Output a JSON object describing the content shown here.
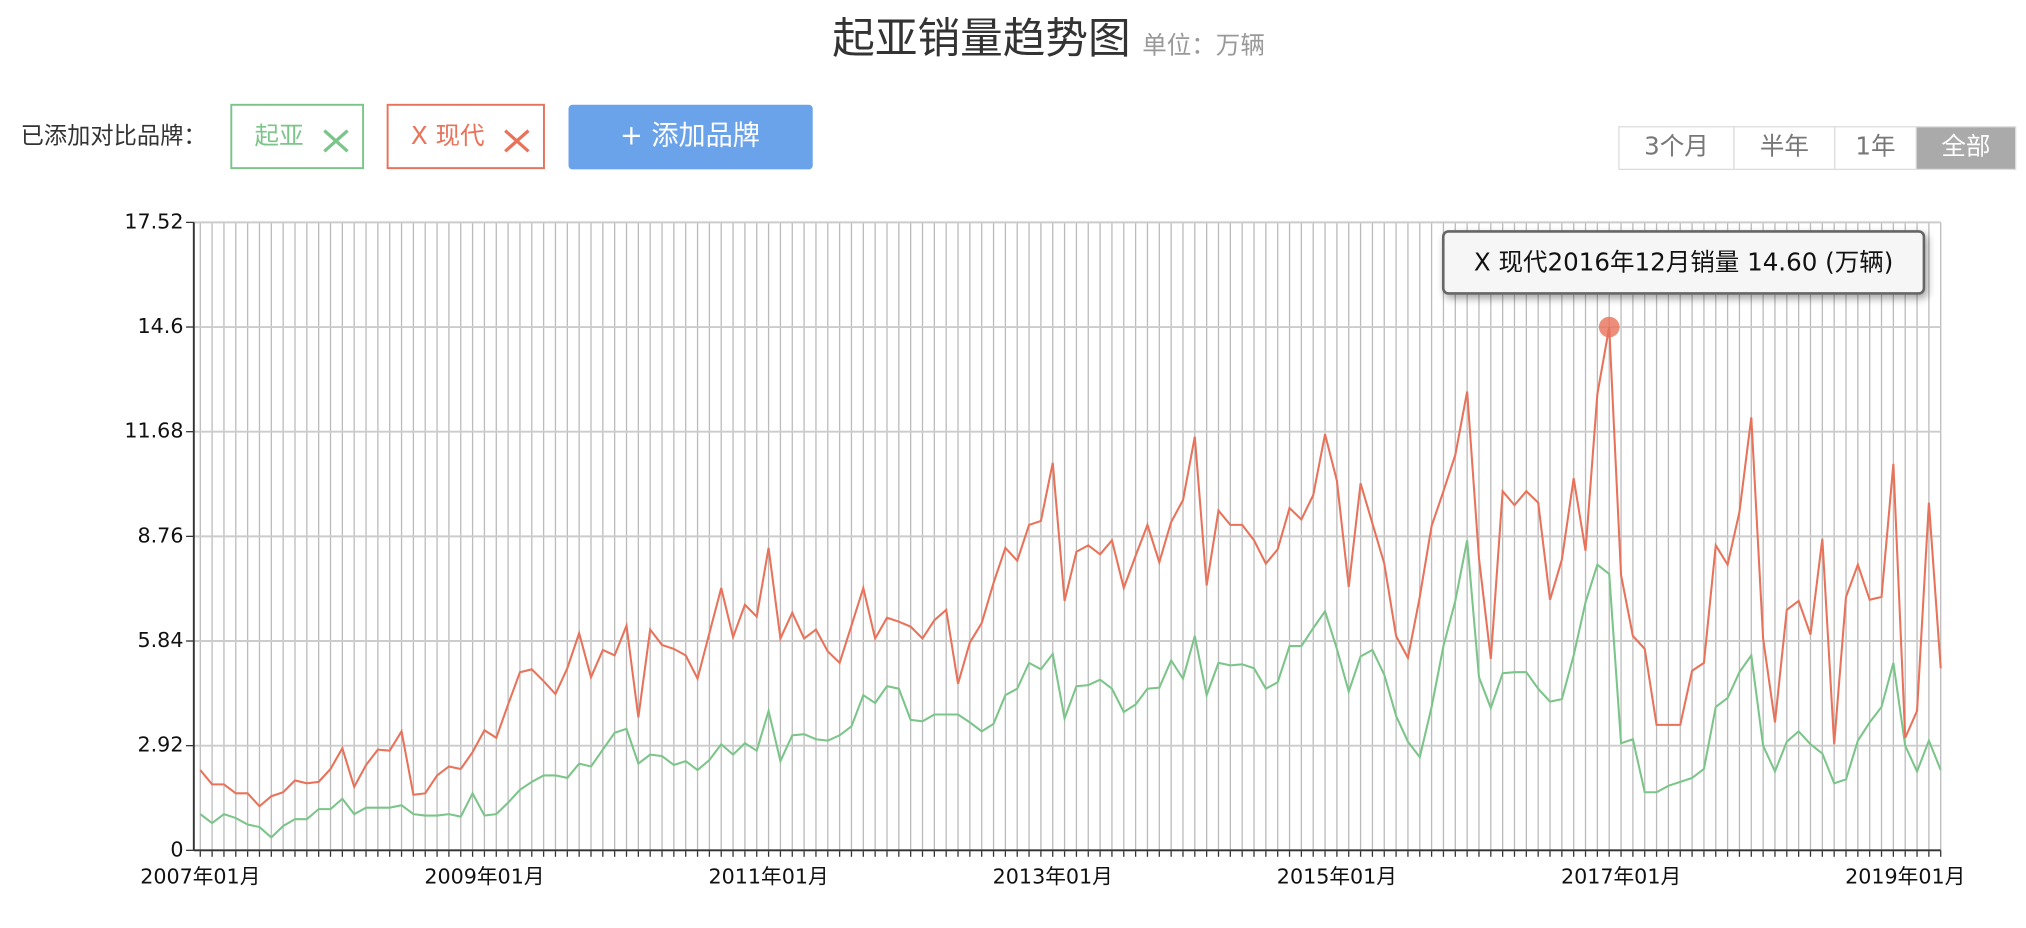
{
  "controls": {
    "label": "已添加对比品牌：",
    "add_button": "+ 添加品牌",
    "ranges": [
      "3个月",
      "半年",
      "1年",
      "全部"
    ]
  },
  "chart_data": {
    "type": "line",
    "title": "起亚销量趋势图",
    "subtitle": "单位：万辆",
    "tooltip": "X 现代2016年12月销量 14.60 (万辆)",
    "ylim": [
      0,
      17.52
    ],
    "yticks": [
      0,
      2.92,
      5.84,
      8.76,
      11.68,
      14.6,
      17.52
    ],
    "grid": true,
    "categories": [
      "2007年01月",
      null,
      null,
      null,
      null,
      null,
      null,
      null,
      null,
      null,
      null,
      null,
      null,
      null,
      null,
      null,
      null,
      null,
      null,
      null,
      null,
      null,
      null,
      null,
      "2009年01月",
      null,
      null,
      null,
      null,
      null,
      null,
      null,
      null,
      null,
      null,
      null,
      null,
      null,
      null,
      null,
      null,
      null,
      null,
      null,
      null,
      null,
      null,
      null,
      "2011年01月",
      null,
      null,
      null,
      null,
      null,
      null,
      null,
      null,
      null,
      null,
      null,
      null,
      null,
      null,
      null,
      null,
      null,
      null,
      null,
      null,
      null,
      null,
      null,
      "2013年01月",
      null,
      null,
      null,
      null,
      null,
      null,
      null,
      null,
      null,
      null,
      null,
      null,
      null,
      null,
      null,
      null,
      null,
      null,
      null,
      null,
      null,
      null,
      null,
      "2015年01月",
      null,
      null,
      null,
      null,
      null,
      null,
      null,
      null,
      null,
      null,
      null,
      null,
      null,
      null,
      null,
      null,
      null,
      null,
      null,
      null,
      null,
      null,
      null,
      "2017年01月",
      null,
      null,
      null,
      null,
      null,
      null,
      null,
      null,
      null,
      null,
      null,
      null,
      null,
      null,
      null,
      null,
      null,
      null,
      null,
      null,
      null,
      null,
      null,
      "2019年01月",
      null,
      null,
      null
    ],
    "series": [
      {
        "name": "起亚",
        "color": "#7cc58a",
        "values": [
          1.01,
          0.76,
          1.01,
          0.9,
          0.72,
          0.65,
          0.36,
          0.68,
          0.87,
          0.87,
          1.15,
          1.15,
          1.44,
          1.01,
          1.19,
          1.19,
          1.19,
          1.26,
          1.01,
          0.97,
          0.97,
          1.01,
          0.94,
          1.59,
          0.97,
          1.01,
          1.33,
          1.69,
          1.91,
          2.09,
          2.09,
          2.02,
          2.42,
          2.34,
          2.81,
          3.28,
          3.39,
          2.42,
          2.67,
          2.63,
          2.38,
          2.49,
          2.24,
          2.52,
          2.96,
          2.67,
          2.99,
          2.78,
          3.89,
          2.49,
          3.21,
          3.24,
          3.1,
          3.06,
          3.21,
          3.46,
          4.33,
          4.11,
          4.58,
          4.51,
          3.64,
          3.6,
          3.79,
          3.79,
          3.79,
          3.57,
          3.32,
          3.53,
          4.33,
          4.51,
          5.23,
          5.05,
          5.48,
          3.68,
          4.58,
          4.61,
          4.76,
          4.51,
          3.86,
          4.07,
          4.51,
          4.54,
          5.3,
          4.79,
          5.98,
          4.33,
          5.23,
          5.16,
          5.19,
          5.08,
          4.51,
          4.69,
          5.7,
          5.7,
          6.2,
          6.67,
          5.62,
          4.43,
          5.41,
          5.59,
          4.9,
          3.75,
          3.03,
          2.6,
          4.0,
          5.7,
          6.96,
          8.65,
          4.83,
          3.97,
          4.94,
          4.97,
          4.97,
          4.51,
          4.15,
          4.22,
          5.44,
          6.92,
          7.97,
          7.71,
          2.99,
          3.1,
          1.62,
          1.62,
          1.8,
          1.91,
          2.02,
          2.27,
          4.0,
          4.25,
          4.97,
          5.44,
          2.92,
          2.2,
          3.03,
          3.32,
          2.96,
          2.7,
          1.87,
          1.98,
          3.06,
          3.57,
          4.0,
          5.23,
          2.92,
          2.2,
          3.06,
          2.24
        ]
      },
      {
        "name": "X 现代",
        "color": "#e8725a",
        "values": [
          2.24,
          1.84,
          1.84,
          1.59,
          1.59,
          1.23,
          1.51,
          1.62,
          1.95,
          1.87,
          1.91,
          2.27,
          2.85,
          1.77,
          2.38,
          2.81,
          2.78,
          3.32,
          1.55,
          1.59,
          2.09,
          2.34,
          2.27,
          2.74,
          3.35,
          3.14,
          4.07,
          4.97,
          5.05,
          4.72,
          4.36,
          5.08,
          6.06,
          4.83,
          5.59,
          5.44,
          6.27,
          3.71,
          6.16,
          5.73,
          5.62,
          5.44,
          4.79,
          6.06,
          7.32,
          5.95,
          6.85,
          6.52,
          8.44,
          5.91,
          6.63,
          5.91,
          6.16,
          5.55,
          5.23,
          6.27,
          7.32,
          5.91,
          6.49,
          6.38,
          6.24,
          5.91,
          6.42,
          6.71,
          4.65,
          5.8,
          6.34,
          7.46,
          8.44,
          8.08,
          9.08,
          9.19,
          10.81,
          6.96,
          8.33,
          8.51,
          8.26,
          8.65,
          7.32,
          8.22,
          9.08,
          8.04,
          9.16,
          9.77,
          11.54,
          7.39,
          9.48,
          9.08,
          9.08,
          8.65,
          8.0,
          8.4,
          9.55,
          9.23,
          9.91,
          11.61,
          10.31,
          7.35,
          10.24,
          9.12,
          8.0,
          5.98,
          5.37,
          7.07,
          9.05,
          10.02,
          11.03,
          12.8,
          8.15,
          5.34,
          10.02,
          9.63,
          10.02,
          9.7,
          6.99,
          8.11,
          10.38,
          8.36,
          12.73,
          14.6,
          7.68,
          5.98,
          5.62,
          3.5,
          3.5,
          3.5,
          5.01,
          5.23,
          8.51,
          7.97,
          9.44,
          12.08,
          5.91,
          3.57,
          6.71,
          6.96,
          6.02,
          8.69,
          2.96,
          7.07,
          7.97,
          6.99,
          7.07,
          10.78,
          3.14,
          3.89,
          9.7,
          5.08
        ]
      }
    ]
  }
}
